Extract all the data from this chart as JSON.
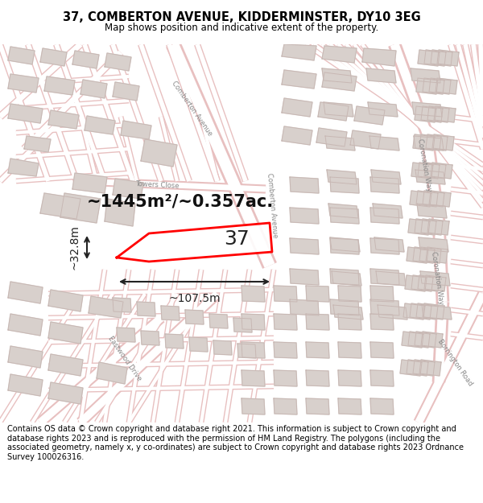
{
  "title_line1": "37, COMBERTON AVENUE, KIDDERMINSTER, DY10 3EG",
  "title_line2": "Map shows position and indicative extent of the property.",
  "area_text": "~1445m²/~0.357ac.",
  "label_37": "37",
  "dim_width": "~107.5m",
  "dim_height": "~32.8m",
  "footer_text": "Contains OS data © Crown copyright and database right 2021. This information is subject to Crown copyright and database rights 2023 and is reproduced with the permission of HM Land Registry. The polygons (including the associated geometry, namely x, y co-ordinates) are subject to Crown copyright and database rights 2023 Ordnance Survey 100026316.",
  "map_bg": "#f5f0ee",
  "road_fill": "#ffffff",
  "road_edge": "#e8c0c0",
  "building_fill": "#d8d0cc",
  "building_edge": "#c8b8b4",
  "plot_color": "#ff0000",
  "white": "#ffffff",
  "dim_color": "#222222",
  "street_label_color": "#888888",
  "fig_width": 6.0,
  "fig_height": 6.25,
  "title_fontsize": 10.5,
  "subtitle_fontsize": 8.5,
  "footer_fontsize": 7.0,
  "area_fontsize": 15,
  "label37_fontsize": 18,
  "dim_fontsize": 10
}
